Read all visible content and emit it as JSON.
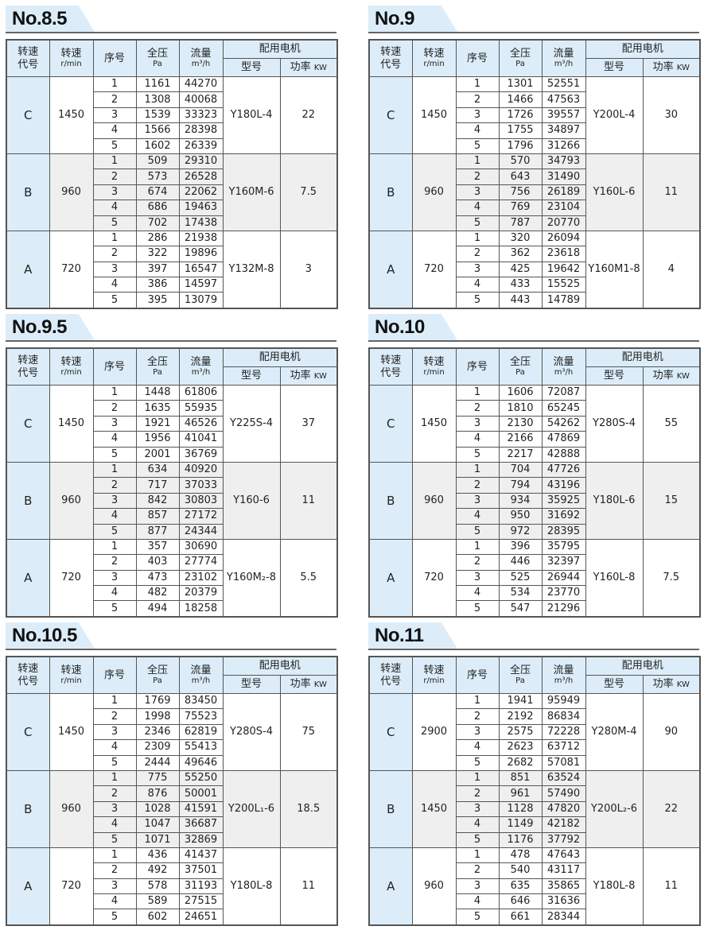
{
  "headers": {
    "speed_code": "转速代号",
    "speed": "转速",
    "speed_unit": "r/min",
    "seq": "序号",
    "pressure": "全压",
    "pressure_unit": "Pa",
    "flow": "流量",
    "flow_unit": "m³/h",
    "motor": "配用电机",
    "model": "型号",
    "power": "功率",
    "power_unit": "KW"
  },
  "colors": {
    "header_bg": "#dcedf9",
    "band_b_bg": "#efefef",
    "border": "#555555"
  },
  "tables": [
    {
      "title": "No.8.5",
      "groups": [
        {
          "code": "C",
          "speed": "1450",
          "model": "Y180L-4",
          "power": "22",
          "rows": [
            [
              "1",
              "1161",
              "44270"
            ],
            [
              "2",
              "1308",
              "40068"
            ],
            [
              "3",
              "1539",
              "33323"
            ],
            [
              "4",
              "1566",
              "28398"
            ],
            [
              "5",
              "1602",
              "26339"
            ]
          ]
        },
        {
          "code": "B",
          "speed": "960",
          "model": "Y160M-6",
          "power": "7.5",
          "rows": [
            [
              "1",
              "509",
              "29310"
            ],
            [
              "2",
              "573",
              "26528"
            ],
            [
              "3",
              "674",
              "22062"
            ],
            [
              "4",
              "686",
              "19463"
            ],
            [
              "5",
              "702",
              "17438"
            ]
          ]
        },
        {
          "code": "A",
          "speed": "720",
          "model": "Y132M-8",
          "power": "3",
          "rows": [
            [
              "1",
              "286",
              "21938"
            ],
            [
              "2",
              "322",
              "19896"
            ],
            [
              "3",
              "397",
              "16547"
            ],
            [
              "4",
              "386",
              "14597"
            ],
            [
              "5",
              "395",
              "13079"
            ]
          ]
        }
      ]
    },
    {
      "title": "No.9",
      "groups": [
        {
          "code": "C",
          "speed": "1450",
          "model": "Y200L-4",
          "power": "30",
          "rows": [
            [
              "1",
              "1301",
              "52551"
            ],
            [
              "2",
              "1466",
              "47563"
            ],
            [
              "3",
              "1726",
              "39557"
            ],
            [
              "4",
              "1755",
              "34897"
            ],
            [
              "5",
              "1796",
              "31266"
            ]
          ]
        },
        {
          "code": "B",
          "speed": "960",
          "model": "Y160L-6",
          "power": "11",
          "rows": [
            [
              "1",
              "570",
              "34793"
            ],
            [
              "2",
              "643",
              "31490"
            ],
            [
              "3",
              "756",
              "26189"
            ],
            [
              "4",
              "769",
              "23104"
            ],
            [
              "5",
              "787",
              "20770"
            ]
          ]
        },
        {
          "code": "A",
          "speed": "720",
          "model": "Y160M1-8",
          "power": "4",
          "rows": [
            [
              "1",
              "320",
              "26094"
            ],
            [
              "2",
              "362",
              "23618"
            ],
            [
              "3",
              "425",
              "19642"
            ],
            [
              "4",
              "433",
              "15525"
            ],
            [
              "5",
              "443",
              "14789"
            ]
          ]
        }
      ]
    },
    {
      "title": "No.9.5",
      "groups": [
        {
          "code": "C",
          "speed": "1450",
          "model": "Y225S-4",
          "power": "37",
          "rows": [
            [
              "1",
              "1448",
              "61806"
            ],
            [
              "2",
              "1635",
              "55935"
            ],
            [
              "3",
              "1921",
              "46526"
            ],
            [
              "4",
              "1956",
              "41041"
            ],
            [
              "5",
              "2001",
              "36769"
            ]
          ]
        },
        {
          "code": "B",
          "speed": "960",
          "model": "Y160-6",
          "power": "11",
          "rows": [
            [
              "1",
              "634",
              "40920"
            ],
            [
              "2",
              "717",
              "37033"
            ],
            [
              "3",
              "842",
              "30803"
            ],
            [
              "4",
              "857",
              "27172"
            ],
            [
              "5",
              "877",
              "24344"
            ]
          ]
        },
        {
          "code": "A",
          "speed": "720",
          "model": "Y160M₂-8",
          "power": "5.5",
          "rows": [
            [
              "1",
              "357",
              "30690"
            ],
            [
              "2",
              "403",
              "27774"
            ],
            [
              "3",
              "473",
              "23102"
            ],
            [
              "4",
              "482",
              "20379"
            ],
            [
              "5",
              "494",
              "18258"
            ]
          ]
        }
      ]
    },
    {
      "title": "No.10",
      "groups": [
        {
          "code": "C",
          "speed": "1450",
          "model": "Y280S-4",
          "power": "55",
          "rows": [
            [
              "1",
              "1606",
              "72087"
            ],
            [
              "2",
              "1810",
              "65245"
            ],
            [
              "3",
              "2130",
              "54262"
            ],
            [
              "4",
              "2166",
              "47869"
            ],
            [
              "5",
              "2217",
              "42888"
            ]
          ]
        },
        {
          "code": "B",
          "speed": "960",
          "model": "Y180L-6",
          "power": "15",
          "rows": [
            [
              "1",
              "704",
              "47726"
            ],
            [
              "2",
              "794",
              "43196"
            ],
            [
              "3",
              "934",
              "35925"
            ],
            [
              "4",
              "950",
              "31692"
            ],
            [
              "5",
              "972",
              "28395"
            ]
          ]
        },
        {
          "code": "A",
          "speed": "720",
          "model": "Y160L-8",
          "power": "7.5",
          "rows": [
            [
              "1",
              "396",
              "35795"
            ],
            [
              "2",
              "446",
              "32397"
            ],
            [
              "3",
              "525",
              "26944"
            ],
            [
              "4",
              "534",
              "23770"
            ],
            [
              "5",
              "547",
              "21296"
            ]
          ]
        }
      ]
    },
    {
      "title": "No.10.5",
      "groups": [
        {
          "code": "C",
          "speed": "1450",
          "model": "Y280S-4",
          "power": "75",
          "rows": [
            [
              "1",
              "1769",
              "83450"
            ],
            [
              "2",
              "1998",
              "75523"
            ],
            [
              "3",
              "2346",
              "62819"
            ],
            [
              "4",
              "2309",
              "55413"
            ],
            [
              "5",
              "2444",
              "49646"
            ]
          ]
        },
        {
          "code": "B",
          "speed": "960",
          "model": "Y200L₁-6",
          "power": "18.5",
          "rows": [
            [
              "1",
              "775",
              "55250"
            ],
            [
              "2",
              "876",
              "50001"
            ],
            [
              "3",
              "1028",
              "41591"
            ],
            [
              "4",
              "1047",
              "36687"
            ],
            [
              "5",
              "1071",
              "32869"
            ]
          ]
        },
        {
          "code": "A",
          "speed": "720",
          "model": "Y180L-8",
          "power": "11",
          "rows": [
            [
              "1",
              "436",
              "41437"
            ],
            [
              "2",
              "492",
              "37501"
            ],
            [
              "3",
              "578",
              "31193"
            ],
            [
              "4",
              "589",
              "27515"
            ],
            [
              "5",
              "602",
              "24651"
            ]
          ]
        }
      ]
    },
    {
      "title": "No.11",
      "groups": [
        {
          "code": "C",
          "speed": "2900",
          "model": "Y280M-4",
          "power": "90",
          "rows": [
            [
              "1",
              "1941",
              "95949"
            ],
            [
              "2",
              "2192",
              "86834"
            ],
            [
              "3",
              "2575",
              "72228"
            ],
            [
              "4",
              "2623",
              "63712"
            ],
            [
              "5",
              "2682",
              "57081"
            ]
          ]
        },
        {
          "code": "B",
          "speed": "1450",
          "model": "Y200L₂-6",
          "power": "22",
          "rows": [
            [
              "1",
              "851",
              "63524"
            ],
            [
              "2",
              "961",
              "57490"
            ],
            [
              "3",
              "1128",
              "47820"
            ],
            [
              "4",
              "1149",
              "42182"
            ],
            [
              "5",
              "1176",
              "37792"
            ]
          ]
        },
        {
          "code": "A",
          "speed": "960",
          "model": "Y180L-8",
          "power": "11",
          "rows": [
            [
              "1",
              "478",
              "47643"
            ],
            [
              "2",
              "540",
              "43117"
            ],
            [
              "3",
              "635",
              "35865"
            ],
            [
              "4",
              "646",
              "31636"
            ],
            [
              "5",
              "661",
              "28344"
            ]
          ]
        }
      ]
    }
  ]
}
